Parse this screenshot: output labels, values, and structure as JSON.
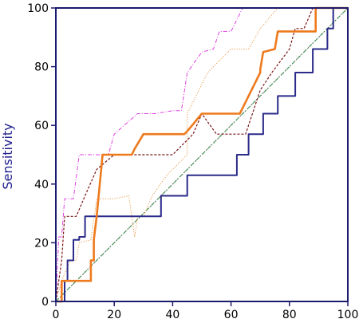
{
  "chart_data": {
    "type": "line",
    "title": "",
    "xlabel": "",
    "ylabel": "Sensitivity",
    "xlim": [
      0,
      100
    ],
    "ylim": [
      0,
      100
    ],
    "x_ticks": [
      0,
      20,
      40,
      60,
      80,
      100
    ],
    "y_ticks": [
      0,
      20,
      40,
      60,
      80,
      100
    ],
    "grid": false,
    "legend": "none",
    "series": [
      {
        "style": "diagonal-reference",
        "color": "#555555",
        "points": [
          [
            0,
            0
          ],
          [
            100,
            100
          ]
        ]
      },
      {
        "style": "dash-dot",
        "color": "#2e8b3e",
        "points": [
          [
            0,
            0
          ],
          [
            100,
            100
          ]
        ]
      },
      {
        "style": "dash-dot",
        "color": "#e040e0",
        "points": [
          [
            0,
            0
          ],
          [
            1,
            22
          ],
          [
            2,
            22
          ],
          [
            3,
            35
          ],
          [
            6,
            35
          ],
          [
            8,
            50
          ],
          [
            18,
            50
          ],
          [
            20,
            57
          ],
          [
            28,
            64
          ],
          [
            34,
            64
          ],
          [
            40,
            65
          ],
          [
            43,
            65
          ],
          [
            45,
            78
          ],
          [
            50,
            85
          ],
          [
            54,
            86
          ],
          [
            56,
            92
          ],
          [
            60,
            92
          ],
          [
            64,
            100
          ],
          [
            100,
            100
          ]
        ]
      },
      {
        "style": "dotted",
        "color": "#e59a4a",
        "points": [
          [
            0,
            0
          ],
          [
            2,
            7
          ],
          [
            5,
            14
          ],
          [
            7,
            14
          ],
          [
            8,
            20
          ],
          [
            12,
            21
          ],
          [
            14,
            35
          ],
          [
            20,
            35
          ],
          [
            25,
            36
          ],
          [
            27,
            22
          ],
          [
            28,
            29
          ],
          [
            30,
            29
          ],
          [
            33,
            36
          ],
          [
            38,
            43
          ],
          [
            45,
            50
          ],
          [
            45,
            64
          ],
          [
            52,
            78
          ],
          [
            60,
            86
          ],
          [
            66,
            86
          ],
          [
            70,
            93
          ],
          [
            76,
            100
          ],
          [
            100,
            100
          ]
        ]
      },
      {
        "style": "dashed",
        "color": "#7a1515",
        "points": [
          [
            0,
            0
          ],
          [
            2,
            14
          ],
          [
            3,
            29
          ],
          [
            7,
            29
          ],
          [
            10,
            36
          ],
          [
            14,
            45
          ],
          [
            20,
            50
          ],
          [
            40,
            50
          ],
          [
            47,
            57
          ],
          [
            50,
            64
          ],
          [
            55,
            57
          ],
          [
            65,
            57
          ],
          [
            70,
            72
          ],
          [
            74,
            78
          ],
          [
            80,
            86
          ],
          [
            82,
            93
          ],
          [
            85,
            93
          ],
          [
            88,
            100
          ],
          [
            100,
            100
          ]
        ]
      },
      {
        "style": "solid",
        "color": "#2b2b8a",
        "points": [
          [
            0,
            0
          ],
          [
            3,
            0
          ],
          [
            3,
            7
          ],
          [
            4,
            7
          ],
          [
            4,
            14
          ],
          [
            6,
            14
          ],
          [
            6,
            21
          ],
          [
            8,
            21
          ],
          [
            8,
            22
          ],
          [
            10,
            22
          ],
          [
            10,
            29
          ],
          [
            36,
            29
          ],
          [
            36,
            36
          ],
          [
            45,
            36
          ],
          [
            45,
            43
          ],
          [
            62,
            43
          ],
          [
            62,
            50
          ],
          [
            66,
            50
          ],
          [
            66,
            57
          ],
          [
            71,
            57
          ],
          [
            71,
            64
          ],
          [
            76,
            64
          ],
          [
            76,
            70
          ],
          [
            82,
            70
          ],
          [
            82,
            78
          ],
          [
            88,
            78
          ],
          [
            88,
            86
          ],
          [
            93,
            86
          ],
          [
            93,
            93
          ],
          [
            95,
            93
          ],
          [
            95,
            100
          ],
          [
            100,
            100
          ]
        ]
      },
      {
        "style": "solid-thick",
        "color": "#ee7a1e",
        "points": [
          [
            0,
            0
          ],
          [
            2,
            0
          ],
          [
            2,
            7
          ],
          [
            12,
            7
          ],
          [
            12,
            14
          ],
          [
            13,
            14
          ],
          [
            13,
            21
          ],
          [
            14,
            29
          ],
          [
            16,
            50
          ],
          [
            26,
            50
          ],
          [
            27,
            52
          ],
          [
            30,
            57
          ],
          [
            44,
            57
          ],
          [
            45,
            58
          ],
          [
            50,
            64
          ],
          [
            63,
            64
          ],
          [
            70,
            78
          ],
          [
            70,
            79
          ],
          [
            71,
            85
          ],
          [
            75,
            86
          ],
          [
            76,
            92
          ],
          [
            89,
            92
          ],
          [
            89,
            100
          ],
          [
            100,
            100
          ]
        ]
      }
    ]
  }
}
